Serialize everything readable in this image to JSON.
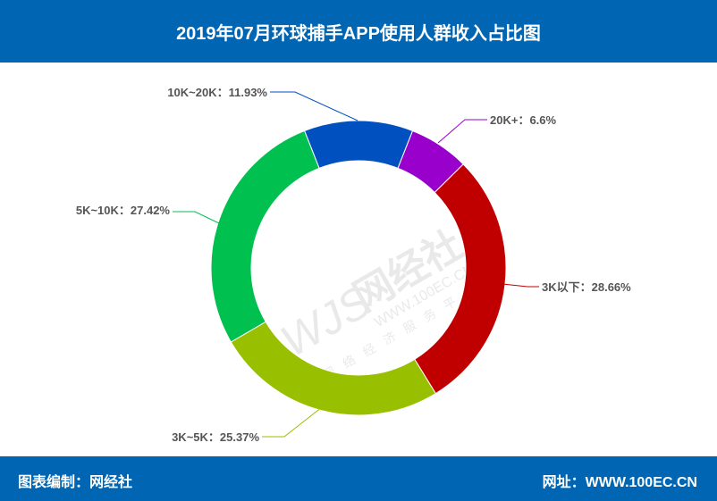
{
  "header": {
    "title": "2019年07月环球捕手APP使用人群收入占比图"
  },
  "footer": {
    "left": "图表编制：网经社",
    "right": "网址：WWW.100EC.CN"
  },
  "watermark": {
    "logo": "WJS",
    "name": "网经社",
    "url": "WWW.100EC.CN",
    "slogan": "网络经济服务平台"
  },
  "chart_data": {
    "type": "pie",
    "donut": true,
    "title": "2019年07月环球捕手APP使用人群收入占比图",
    "categories": [
      "20K+",
      "3K以下",
      "3K~5K",
      "5K~10K",
      "10K~20K"
    ],
    "values": [
      6.6,
      28.66,
      25.37,
      27.42,
      11.93
    ],
    "labels": [
      "20K+：6.6%",
      "3K以下：28.66%",
      "3K~5K：25.37%",
      "5K~10K：27.42%",
      "10K~20K：11.93%"
    ],
    "colors": [
      "#9900cc",
      "#c00000",
      "#99c000",
      "#00c050",
      "#0050c0"
    ]
  }
}
